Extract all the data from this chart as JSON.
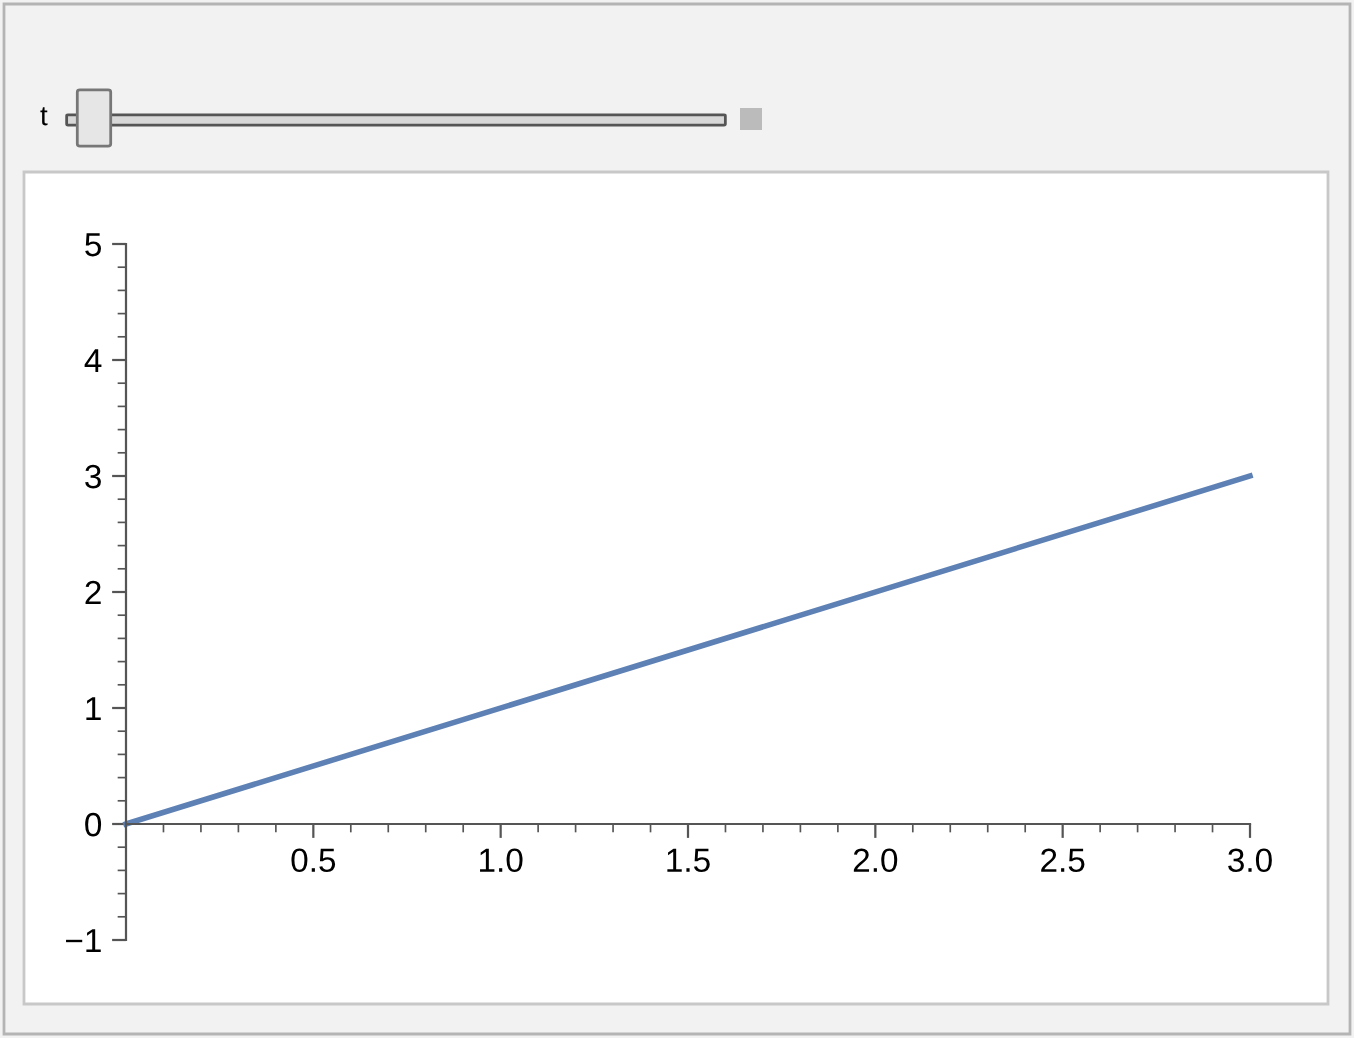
{
  "chart_data": {
    "type": "line",
    "x": [
      0,
      3
    ],
    "series": [
      {
        "color": "#5e81b5",
        "values": [
          0,
          3
        ]
      }
    ],
    "xlim": [
      0,
      3
    ],
    "ylim": [
      -1,
      5
    ],
    "xticks": [
      0.5,
      {
        "value": 1,
        "label": "1.0"
      },
      1.5,
      {
        "value": 2,
        "label": "2.0"
      },
      2.5,
      {
        "value": 3,
        "label": "3.0"
      }
    ],
    "yticks": [
      {
        "value": -1,
        "label": "−1"
      },
      0,
      1,
      2,
      3,
      4,
      5
    ],
    "annotations": [
      "t"
    ],
    "grid": false,
    "legend": false,
    "marker": "none",
    "line_style": "solid"
  }
}
